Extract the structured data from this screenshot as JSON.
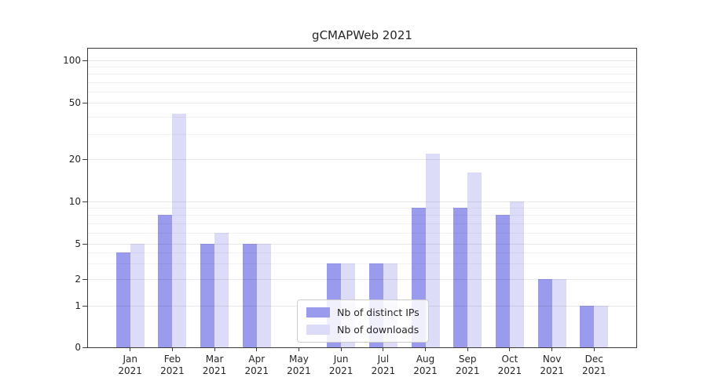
{
  "chart_data": {
    "type": "bar",
    "title": "gCMAPWeb 2021",
    "scale": "symlog",
    "grid": true,
    "legend_position": "lower center",
    "categories": [
      "Jan",
      "Feb",
      "Mar",
      "Apr",
      "May",
      "Jun",
      "Jul",
      "Aug",
      "Sep",
      "Oct",
      "Nov",
      "Dec"
    ],
    "category_year": "2021",
    "series": [
      {
        "name": "Nb of distinct IPs",
        "color": "#9b9bee",
        "values": [
          4,
          8,
          5,
          5,
          0,
          3,
          3,
          9,
          9,
          8,
          2,
          1
        ]
      },
      {
        "name": "Nb of downloads",
        "color": "#dcdcf9",
        "values": [
          5,
          42,
          6,
          5,
          0,
          3,
          3,
          22,
          16,
          10,
          2,
          1
        ]
      }
    ],
    "yticks": [
      0,
      1,
      2,
      5,
      10,
      20,
      50,
      100
    ],
    "ylim": [
      0,
      100
    ]
  }
}
